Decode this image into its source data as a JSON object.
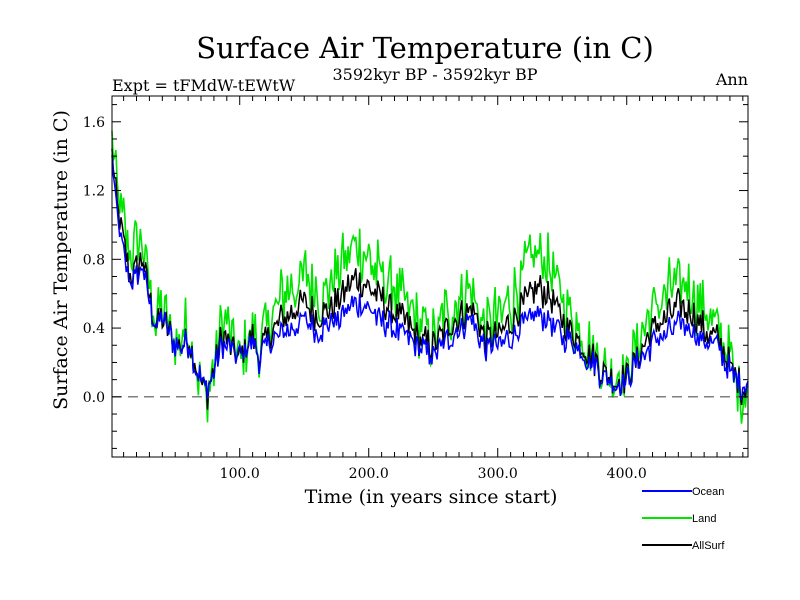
{
  "chart_data": {
    "type": "line",
    "title": "Surface Air Temperature (in C)",
    "subtitle_left": "Expt = tFMdW-tEWtW",
    "subtitle_center": "3592kyr BP - 3592kyr BP",
    "subtitle_right": "Ann",
    "xlabel": "Time (in years since start)",
    "ylabel": "Surface Air Temperature (in C)",
    "xlim": [
      1,
      494
    ],
    "ylim": [
      -0.35,
      1.75
    ],
    "x_ticks": [
      100,
      200,
      300,
      400
    ],
    "x_tick_labels": [
      "100.0",
      "200.0",
      "300.0",
      "400.0"
    ],
    "y_ticks": [
      0.0,
      0.4,
      0.8,
      1.2,
      1.6
    ],
    "y_tick_labels": [
      "0.0",
      "0.4",
      "0.8",
      "1.2",
      "1.6"
    ],
    "reference_line": 0.0,
    "series": [
      {
        "name": "Ocean",
        "color": "#0000ff",
        "keypoints": [
          [
            1,
            1.38
          ],
          [
            5,
            1.05
          ],
          [
            10,
            0.85
          ],
          [
            15,
            0.65
          ],
          [
            20,
            0.7
          ],
          [
            25,
            0.75
          ],
          [
            30,
            0.55
          ],
          [
            35,
            0.42
          ],
          [
            40,
            0.45
          ],
          [
            45,
            0.38
          ],
          [
            50,
            0.3
          ],
          [
            55,
            0.28
          ],
          [
            60,
            0.32
          ],
          [
            65,
            0.2
          ],
          [
            70,
            0.1
          ],
          [
            75,
            0.05
          ],
          [
            80,
            0.15
          ],
          [
            85,
            0.28
          ],
          [
            90,
            0.3
          ],
          [
            95,
            0.25
          ],
          [
            100,
            0.22
          ],
          [
            105,
            0.28
          ],
          [
            110,
            0.32
          ],
          [
            115,
            0.22
          ],
          [
            120,
            0.28
          ],
          [
            130,
            0.35
          ],
          [
            140,
            0.4
          ],
          [
            150,
            0.45
          ],
          [
            160,
            0.38
          ],
          [
            170,
            0.42
          ],
          [
            180,
            0.48
          ],
          [
            190,
            0.55
          ],
          [
            200,
            0.5
          ],
          [
            210,
            0.45
          ],
          [
            220,
            0.4
          ],
          [
            230,
            0.35
          ],
          [
            240,
            0.28
          ],
          [
            250,
            0.25
          ],
          [
            260,
            0.32
          ],
          [
            270,
            0.4
          ],
          [
            280,
            0.45
          ],
          [
            290,
            0.3
          ],
          [
            300,
            0.3
          ],
          [
            310,
            0.35
          ],
          [
            320,
            0.42
          ],
          [
            330,
            0.48
          ],
          [
            340,
            0.45
          ],
          [
            350,
            0.35
          ],
          [
            360,
            0.3
          ],
          [
            370,
            0.22
          ],
          [
            380,
            0.15
          ],
          [
            390,
            0.08
          ],
          [
            400,
            0.1
          ],
          [
            410,
            0.2
          ],
          [
            420,
            0.32
          ],
          [
            430,
            0.35
          ],
          [
            440,
            0.42
          ],
          [
            450,
            0.4
          ],
          [
            460,
            0.32
          ],
          [
            470,
            0.3
          ],
          [
            480,
            0.15
          ],
          [
            490,
            0.05
          ],
          [
            494,
            0.1
          ]
        ]
      },
      {
        "name": "Land",
        "color": "#00e400",
        "keypoints": [
          [
            1,
            1.48
          ],
          [
            5,
            1.2
          ],
          [
            10,
            1.0
          ],
          [
            15,
            0.82
          ],
          [
            20,
            0.88
          ],
          [
            25,
            0.9
          ],
          [
            30,
            0.65
          ],
          [
            35,
            0.45
          ],
          [
            40,
            0.5
          ],
          [
            45,
            0.4
          ],
          [
            50,
            0.3
          ],
          [
            55,
            0.38
          ],
          [
            60,
            0.4
          ],
          [
            65,
            0.28
          ],
          [
            70,
            0.05
          ],
          [
            75,
            0.0
          ],
          [
            80,
            0.18
          ],
          [
            85,
            0.42
          ],
          [
            90,
            0.4
          ],
          [
            95,
            0.3
          ],
          [
            100,
            0.22
          ],
          [
            105,
            0.3
          ],
          [
            110,
            0.38
          ],
          [
            115,
            0.28
          ],
          [
            120,
            0.38
          ],
          [
            130,
            0.55
          ],
          [
            140,
            0.62
          ],
          [
            150,
            0.72
          ],
          [
            160,
            0.6
          ],
          [
            170,
            0.65
          ],
          [
            180,
            0.78
          ],
          [
            190,
            0.9
          ],
          [
            200,
            0.8
          ],
          [
            210,
            0.7
          ],
          [
            220,
            0.62
          ],
          [
            230,
            0.52
          ],
          [
            240,
            0.4
          ],
          [
            250,
            0.35
          ],
          [
            260,
            0.48
          ],
          [
            270,
            0.58
          ],
          [
            280,
            0.62
          ],
          [
            290,
            0.42
          ],
          [
            300,
            0.45
          ],
          [
            310,
            0.55
          ],
          [
            320,
            0.68
          ],
          [
            330,
            0.85
          ],
          [
            340,
            0.78
          ],
          [
            350,
            0.58
          ],
          [
            360,
            0.42
          ],
          [
            370,
            0.32
          ],
          [
            380,
            0.18
          ],
          [
            390,
            0.1
          ],
          [
            400,
            0.15
          ],
          [
            410,
            0.32
          ],
          [
            420,
            0.5
          ],
          [
            430,
            0.58
          ],
          [
            440,
            0.68
          ],
          [
            450,
            0.62
          ],
          [
            460,
            0.48
          ],
          [
            470,
            0.4
          ],
          [
            480,
            0.22
          ],
          [
            490,
            0.0
          ],
          [
            494,
            0.1
          ]
        ]
      },
      {
        "name": "AllSurf",
        "color": "#000000",
        "keypoints": [
          [
            1,
            1.42
          ],
          [
            5,
            1.1
          ],
          [
            10,
            0.9
          ],
          [
            15,
            0.7
          ],
          [
            20,
            0.75
          ],
          [
            25,
            0.8
          ],
          [
            30,
            0.58
          ],
          [
            35,
            0.43
          ],
          [
            40,
            0.46
          ],
          [
            45,
            0.38
          ],
          [
            50,
            0.3
          ],
          [
            55,
            0.31
          ],
          [
            60,
            0.35
          ],
          [
            65,
            0.22
          ],
          [
            70,
            0.08
          ],
          [
            75,
            0.03
          ],
          [
            80,
            0.16
          ],
          [
            85,
            0.33
          ],
          [
            90,
            0.34
          ],
          [
            95,
            0.27
          ],
          [
            100,
            0.22
          ],
          [
            105,
            0.29
          ],
          [
            110,
            0.34
          ],
          [
            115,
            0.24
          ],
          [
            120,
            0.32
          ],
          [
            130,
            0.43
          ],
          [
            140,
            0.49
          ],
          [
            150,
            0.56
          ],
          [
            160,
            0.47
          ],
          [
            170,
            0.51
          ],
          [
            180,
            0.6
          ],
          [
            190,
            0.7
          ],
          [
            200,
            0.63
          ],
          [
            210,
            0.56
          ],
          [
            220,
            0.49
          ],
          [
            230,
            0.42
          ],
          [
            240,
            0.33
          ],
          [
            250,
            0.29
          ],
          [
            260,
            0.39
          ],
          [
            270,
            0.47
          ],
          [
            280,
            0.52
          ],
          [
            290,
            0.35
          ],
          [
            300,
            0.36
          ],
          [
            310,
            0.43
          ],
          [
            320,
            0.53
          ],
          [
            330,
            0.63
          ],
          [
            340,
            0.59
          ],
          [
            350,
            0.45
          ],
          [
            360,
            0.35
          ],
          [
            370,
            0.26
          ],
          [
            380,
            0.16
          ],
          [
            390,
            0.09
          ],
          [
            400,
            0.12
          ],
          [
            410,
            0.25
          ],
          [
            420,
            0.4
          ],
          [
            430,
            0.45
          ],
          [
            440,
            0.53
          ],
          [
            450,
            0.5
          ],
          [
            460,
            0.39
          ],
          [
            470,
            0.34
          ],
          [
            480,
            0.18
          ],
          [
            490,
            0.03
          ],
          [
            494,
            0.1
          ]
        ]
      }
    ],
    "legend_position": "bottom-right"
  }
}
